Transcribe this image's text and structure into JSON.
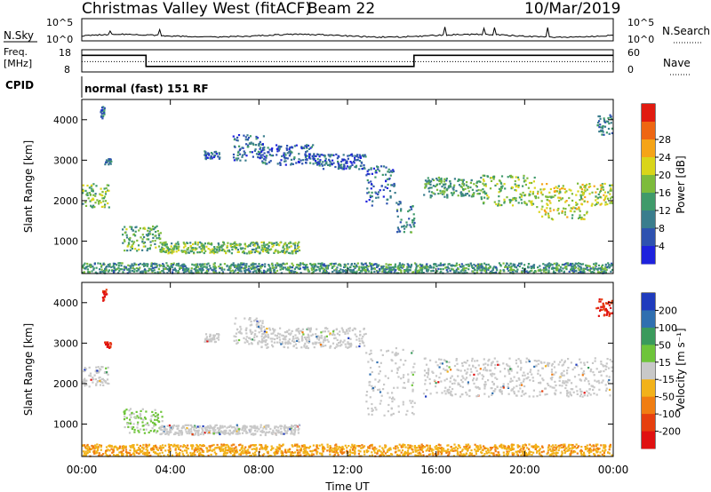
{
  "header": {
    "title": "Christmas Valley West (fitACF)",
    "beam": "Beam 22",
    "date": "10/Mar/2019"
  },
  "top_panels": {
    "noise": {
      "left_label": "N.Sky",
      "right_label": "N.Search",
      "left_ticks": [
        "10^5",
        "10^0"
      ],
      "right_ticks": [
        "10^5",
        "10^0"
      ]
    },
    "freq": {
      "left_label_1": "Freq.",
      "left_label_2": "[MHz]",
      "left_ticks": [
        "18",
        "8"
      ],
      "right_label": "Nave",
      "right_ticks": [
        "60",
        "0"
      ],
      "freq_steps": [
        {
          "t0": 0.0,
          "t1": 2.9,
          "mhz": 15.5
        },
        {
          "t0": 2.9,
          "t1": 15.0,
          "mhz": 10.5
        },
        {
          "t0": 15.0,
          "t1": 24.0,
          "mhz": 15.5
        }
      ],
      "freq_range": [
        8,
        18
      ],
      "nave_level": 28,
      "nave_range": [
        0,
        60
      ]
    },
    "cpid": {
      "label": "CPID",
      "text": "normal (fast) 151 RF"
    }
  },
  "chart_data": [
    {
      "type": "heatmap",
      "title": "Power",
      "xlabel": "",
      "ylabel": "Slant Range [km]",
      "xlim": [
        0,
        24
      ],
      "ylim": [
        200,
        4500
      ],
      "yticks": [
        "1000",
        "2000",
        "3000",
        "4000"
      ],
      "colorbar": {
        "label": "Power [dB]",
        "ticks": [
          "4",
          "8",
          "12",
          "16",
          "20",
          "24",
          "28"
        ],
        "range": [
          0,
          30
        ],
        "colors": [
          "#1e22dd",
          "#2e52b0",
          "#3a7d8d",
          "#3f9a6a",
          "#7dbb3c",
          "#d9d51a",
          "#f5a417",
          "#ee6612",
          "#e11b10"
        ]
      },
      "echo_regions": [
        {
          "x0": 0.0,
          "x1": 1.2,
          "y0": 1850,
          "y1": 2450,
          "level": 14
        },
        {
          "x0": 0.8,
          "x1": 1.0,
          "y0": 4050,
          "y1": 4350,
          "level": 6
        },
        {
          "x0": 1.0,
          "x1": 1.3,
          "y0": 2900,
          "y1": 3050,
          "level": 6
        },
        {
          "x0": 1.8,
          "x1": 3.6,
          "y0": 780,
          "y1": 1400,
          "level": 12
        },
        {
          "x0": 3.5,
          "x1": 9.8,
          "y0": 720,
          "y1": 1000,
          "level": 14
        },
        {
          "x0": 5.5,
          "x1": 6.2,
          "y0": 3050,
          "y1": 3250,
          "level": 5
        },
        {
          "x0": 6.8,
          "x1": 8.2,
          "y0": 3000,
          "y1": 3650,
          "level": 6
        },
        {
          "x0": 8.0,
          "x1": 10.5,
          "y0": 2900,
          "y1": 3400,
          "level": 5
        },
        {
          "x0": 10.5,
          "x1": 12.8,
          "y0": 2800,
          "y1": 3200,
          "level": 5
        },
        {
          "x0": 12.8,
          "x1": 14.2,
          "y0": 1900,
          "y1": 2900,
          "level": 6
        },
        {
          "x0": 14.2,
          "x1": 15.0,
          "y0": 1200,
          "y1": 2000,
          "level": 8
        },
        {
          "x0": 15.4,
          "x1": 18.0,
          "y0": 2100,
          "y1": 2600,
          "level": 11
        },
        {
          "x0": 18.0,
          "x1": 20.5,
          "y0": 1900,
          "y1": 2650,
          "level": 15
        },
        {
          "x0": 20.5,
          "x1": 22.8,
          "y0": 1550,
          "y1": 2450,
          "level": 18
        },
        {
          "x0": 22.5,
          "x1": 24.0,
          "y0": 1900,
          "y1": 2450,
          "level": 16
        },
        {
          "x0": 23.2,
          "x1": 24.0,
          "y0": 3650,
          "y1": 4150,
          "level": 7
        },
        {
          "x0": 0.0,
          "x1": 24.0,
          "y0": 230,
          "y1": 480,
          "level": 10
        }
      ]
    },
    {
      "type": "heatmap",
      "title": "Velocity",
      "xlabel": "Time UT",
      "ylabel": "Slant Range [km]",
      "xlim": [
        0,
        24
      ],
      "ylim": [
        200,
        4500
      ],
      "xticks": [
        "00:00",
        "04:00",
        "08:00",
        "12:00",
        "16:00",
        "20:00",
        "00:00"
      ],
      "yticks": [
        "1000",
        "2000",
        "3000",
        "4000"
      ],
      "colorbar": {
        "label": "Velocity [m s⁻¹]",
        "ticks": [
          "200",
          "100",
          "50",
          "15",
          "-15",
          "-50",
          "-100",
          "-200"
        ],
        "colors": [
          "#1f3bbd",
          "#2f6fb0",
          "#3a9a5c",
          "#6ec43a",
          "#c8c8c8",
          "#f2b21a",
          "#f07d12",
          "#e63f0e",
          "#e01010"
        ]
      },
      "echo_regions": [
        {
          "x0": 0.0,
          "x1": 1.2,
          "y0": 1950,
          "y1": 2450,
          "vclass": "low"
        },
        {
          "x0": 0.9,
          "x1": 1.1,
          "y0": 4050,
          "y1": 4350,
          "vclass": "neg-strong"
        },
        {
          "x0": 1.0,
          "x1": 1.3,
          "y0": 2900,
          "y1": 3050,
          "vclass": "neg-strong"
        },
        {
          "x0": 1.8,
          "x1": 3.6,
          "y0": 800,
          "y1": 1400,
          "vclass": "pos-weak"
        },
        {
          "x0": 3.5,
          "x1": 9.8,
          "y0": 750,
          "y1": 1000,
          "vclass": "low"
        },
        {
          "x0": 5.5,
          "x1": 6.2,
          "y0": 3050,
          "y1": 3250,
          "vclass": "low"
        },
        {
          "x0": 6.8,
          "x1": 8.2,
          "y0": 3000,
          "y1": 3650,
          "vclass": "low"
        },
        {
          "x0": 8.0,
          "x1": 12.8,
          "y0": 2900,
          "y1": 3400,
          "vclass": "low"
        },
        {
          "x0": 12.8,
          "x1": 15.0,
          "y0": 1200,
          "y1": 2900,
          "vclass": "low"
        },
        {
          "x0": 15.4,
          "x1": 24.0,
          "y0": 1700,
          "y1": 2650,
          "vclass": "low"
        },
        {
          "x0": 23.2,
          "x1": 24.0,
          "y0": 3650,
          "y1": 4150,
          "vclass": "neg-strong"
        },
        {
          "x0": 0.0,
          "x1": 24.0,
          "y0": 230,
          "y1": 520,
          "vclass": "neg-weak"
        }
      ]
    }
  ]
}
